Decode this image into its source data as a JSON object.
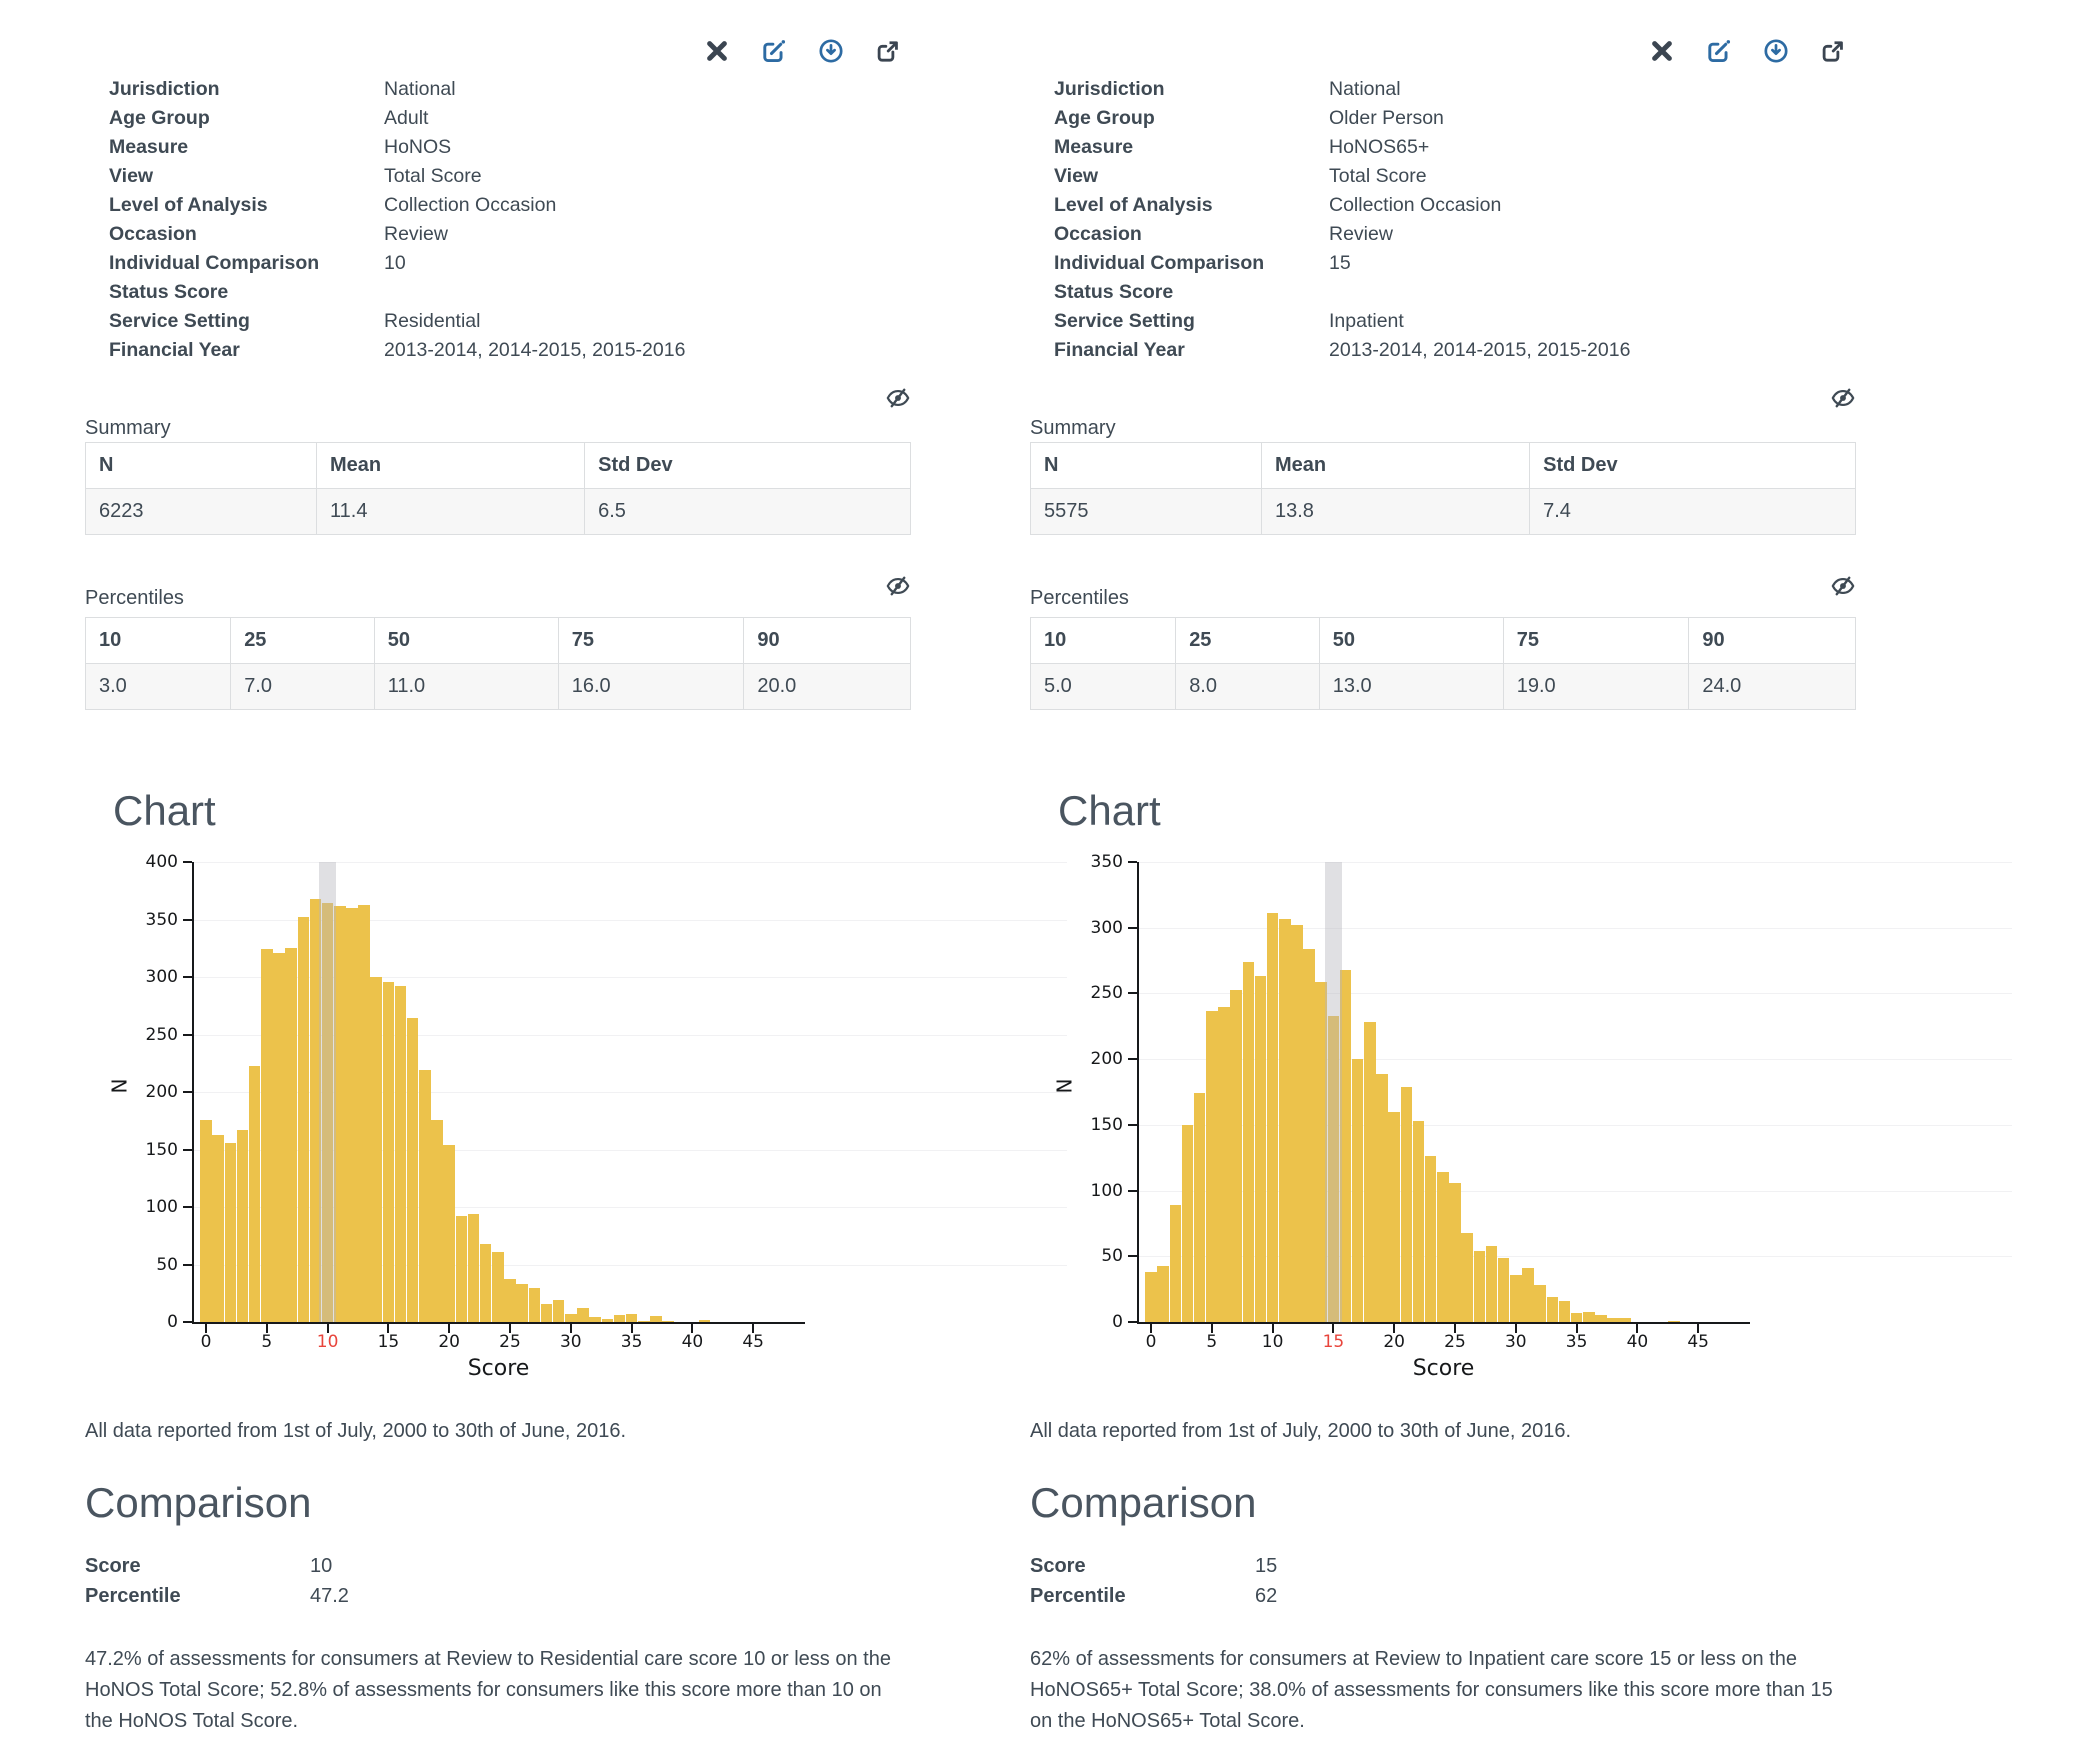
{
  "colors": {
    "text": "#3f4a54",
    "heading": "#4a5560",
    "bar": "#ecc24b",
    "band": "#b4b4bd",
    "highlight_tick": "#e8453c",
    "icon_blue": "#2d6ba3",
    "icon_dark": "#3b4551",
    "table_border": "#dcdee0",
    "row_bg": "#f7f7f7"
  },
  "panels": [
    {
      "toolbar": {
        "icons": [
          "close",
          "edit",
          "download",
          "share"
        ]
      },
      "metadata": {
        "rows": [
          {
            "label": "Jurisdiction",
            "value": "National"
          },
          {
            "label": "Age Group",
            "value": "Adult"
          },
          {
            "label": "Measure",
            "value": "HoNOS"
          },
          {
            "label": "View",
            "value": "Total Score"
          },
          {
            "label": "Level of Analysis",
            "value": "Collection Occasion"
          },
          {
            "label": "Occasion",
            "value": "Review"
          },
          {
            "label": "Individual Comparison",
            "value": "10"
          },
          {
            "label": "Status Score",
            "value": ""
          },
          {
            "label": "Service Setting",
            "value": "Residential"
          },
          {
            "label": "Financial Year",
            "value": "2013-2014, 2014-2015, 2015-2016"
          }
        ]
      },
      "summary": {
        "title": "Summary",
        "columns": [
          "N",
          "Mean",
          "Std Dev"
        ],
        "values": [
          "6223",
          "11.4",
          "6.5"
        ]
      },
      "percentiles": {
        "title": "Percentiles",
        "columns": [
          "10",
          "25",
          "50",
          "75",
          "90"
        ],
        "values": [
          "3.0",
          "7.0",
          "11.0",
          "16.0",
          "20.0"
        ]
      },
      "chart": {
        "title": "Chart"
      },
      "footnote": "All data reported from 1st of July, 2000 to 30th of June, 2016.",
      "comparison": {
        "title": "Comparison",
        "rows": [
          {
            "label": "Score",
            "value": "10"
          },
          {
            "label": "Percentile",
            "value": "47.2"
          }
        ],
        "text": "47.2% of assessments for consumers at Review to Residential care score 10 or less on the HoNOS Total Score; 52.8% of assessments for consumers like this score more than 10 on the HoNOS Total Score."
      }
    },
    {
      "toolbar": {
        "icons": [
          "close",
          "edit",
          "download",
          "share"
        ]
      },
      "metadata": {
        "rows": [
          {
            "label": "Jurisdiction",
            "value": "National"
          },
          {
            "label": "Age Group",
            "value": "Older Person"
          },
          {
            "label": "Measure",
            "value": "HoNOS65+"
          },
          {
            "label": "View",
            "value": "Total Score"
          },
          {
            "label": "Level of Analysis",
            "value": "Collection Occasion"
          },
          {
            "label": "Occasion",
            "value": "Review"
          },
          {
            "label": "Individual Comparison",
            "value": "15"
          },
          {
            "label": "Status Score",
            "value": ""
          },
          {
            "label": "Service Setting",
            "value": "Inpatient"
          },
          {
            "label": "Financial Year",
            "value": "2013-2014, 2014-2015, 2015-2016"
          }
        ]
      },
      "summary": {
        "title": "Summary",
        "columns": [
          "N",
          "Mean",
          "Std Dev"
        ],
        "values": [
          "5575",
          "13.8",
          "7.4"
        ]
      },
      "percentiles": {
        "title": "Percentiles",
        "columns": [
          "10",
          "25",
          "50",
          "75",
          "90"
        ],
        "values": [
          "5.0",
          "8.0",
          "13.0",
          "19.0",
          "24.0"
        ]
      },
      "chart": {
        "title": "Chart"
      },
      "footnote": "All data reported from 1st of July, 2000 to 30th of June, 2016.",
      "comparison": {
        "title": "Comparison",
        "rows": [
          {
            "label": "Score",
            "value": "15"
          },
          {
            "label": "Percentile",
            "value": "62"
          }
        ],
        "text": "62% of assessments for consumers at Review to Inpatient care score 15 or less on the HoNOS65+ Total Score; 38.0% of assessments for consumers like this score more than 15 on the HoNOS65+ Total Score."
      }
    }
  ],
  "chart_data": [
    {
      "type": "bar",
      "title": "Chart",
      "xlabel": "Score",
      "ylabel": "N",
      "x_start": 0,
      "values": [
        176,
        163,
        156,
        167,
        223,
        324,
        321,
        325,
        352,
        368,
        364,
        362,
        360,
        363,
        300,
        296,
        292,
        264,
        219,
        176,
        154,
        92,
        94,
        68,
        61,
        37,
        33,
        30,
        16,
        19,
        7,
        12,
        4,
        3,
        6,
        7,
        1,
        5,
        1,
        0,
        0,
        2
      ],
      "xticks": [
        0,
        5,
        10,
        15,
        20,
        25,
        30,
        35,
        40,
        45
      ],
      "yticks": [
        0,
        50,
        100,
        150,
        200,
        250,
        300,
        350,
        400
      ],
      "ylim": [
        0,
        400
      ],
      "xlim": [
        0,
        49
      ],
      "grid": true,
      "legend": false,
      "highlight_score": 10,
      "highlight_tick_color": "#e8453c",
      "bar_color": "#ecc24b"
    },
    {
      "type": "bar",
      "title": "Chart",
      "xlabel": "Score",
      "ylabel": "N",
      "x_start": 0,
      "values": [
        38,
        43,
        89,
        150,
        174,
        237,
        240,
        253,
        274,
        263,
        311,
        307,
        302,
        284,
        259,
        233,
        268,
        200,
        228,
        189,
        160,
        179,
        153,
        126,
        114,
        106,
        68,
        54,
        58,
        49,
        36,
        41,
        28,
        19,
        16,
        7,
        8,
        5,
        3,
        3,
        0,
        0,
        0,
        1
      ],
      "xticks": [
        0,
        5,
        10,
        15,
        20,
        25,
        30,
        35,
        40,
        45
      ],
      "yticks": [
        0,
        50,
        100,
        150,
        200,
        250,
        300,
        350
      ],
      "ylim": [
        0,
        350
      ],
      "xlim": [
        0,
        49
      ],
      "grid": true,
      "legend": false,
      "highlight_score": 15,
      "highlight_tick_color": "#e8453c",
      "bar_color": "#ecc24b"
    }
  ]
}
